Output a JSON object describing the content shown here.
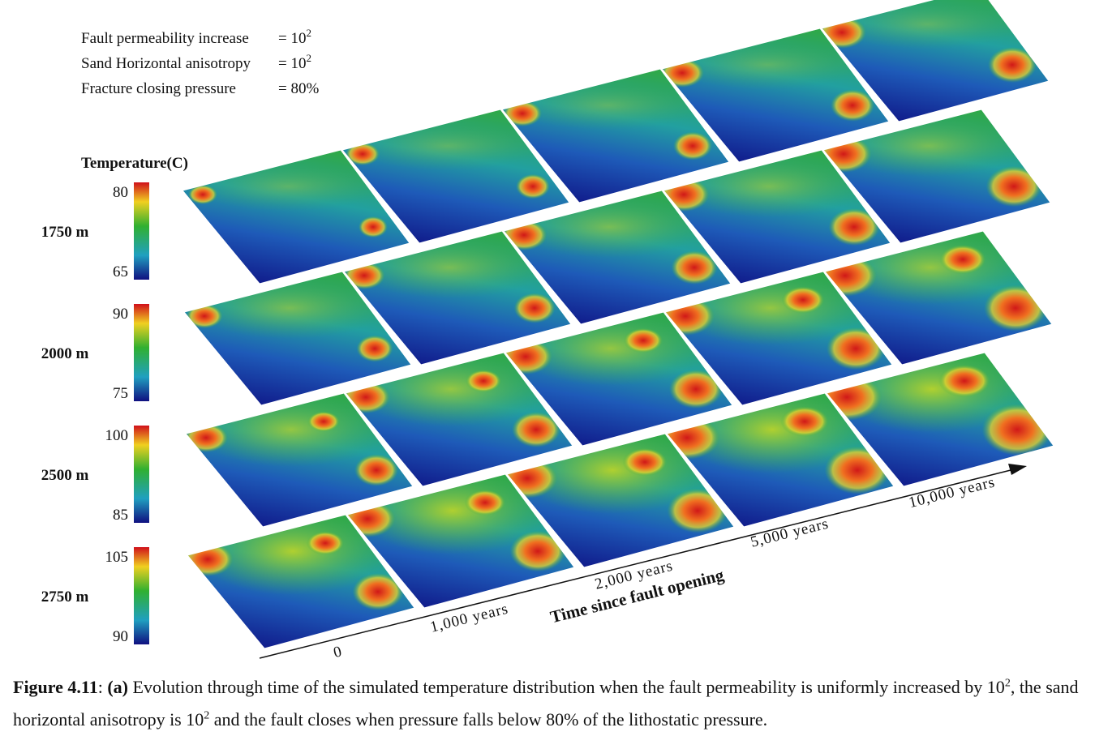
{
  "params": [
    {
      "name": "Fault permeability increase",
      "value": "= 10",
      "sup": "2"
    },
    {
      "name": "Sand Horizontal anisotropy",
      "value": "= 10",
      "sup": "2"
    },
    {
      "name": "Fracture closing pressure",
      "value": "= 80%"
    }
  ],
  "colorbar_title": "Temperature(C)",
  "depths": [
    {
      "label": "1750 m",
      "max": "80",
      "min": "65"
    },
    {
      "label": "2000 m",
      "max": "90",
      "min": "75"
    },
    {
      "label": "2500 m",
      "max": "100",
      "min": "85"
    },
    {
      "label": "2750 m",
      "max": "105",
      "min": "90"
    }
  ],
  "times": [
    "0",
    "1,000 years",
    "2,000 years",
    "5,000 years",
    "10,000 years"
  ],
  "time_axis_label": "Time since fault opening",
  "caption": [
    {
      "text": "Figure 4.11",
      "bold": true
    },
    {
      "text": ": "
    },
    {
      "text": "(a)",
      "bold": true
    },
    {
      "text": " Evolution through time of the simulated temperature distribution when the fault permeability is uniformly increased by 10"
    },
    {
      "text": "2",
      "sup": true
    },
    {
      "text": ", the sand horizontal anisotropy is 10"
    },
    {
      "text": "2",
      "sup": true
    },
    {
      "text": " and the fault closes when pressure falls below 80% of the lithostatic pressure."
    }
  ]
}
